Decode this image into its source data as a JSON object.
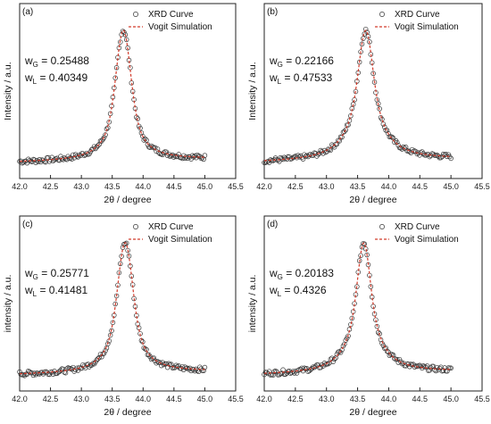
{
  "chart_data": [
    {
      "type": "scatter",
      "panel_label": "(a)",
      "xlabel": "2θ / degree",
      "ylabel": "Intensity / a.u.",
      "xlim": [
        42.0,
        45.5
      ],
      "xticks": [
        "42.0",
        "42.5",
        "43.0",
        "43.5",
        "44.0",
        "44.5",
        "45.0",
        "45.5"
      ],
      "grid": false,
      "legend": {
        "position": "top-right",
        "entries": [
          "XRD Curve",
          "Vogit Simulation"
        ]
      },
      "params": {
        "wG_label": "w",
        "wG_sub": "G",
        "wG_value": " = 0.25488",
        "wL_label": "w",
        "wL_sub": "L",
        "wL_value": " = 0.40349"
      },
      "series": [
        {
          "name": "XRD Curve",
          "peak_x": 43.68,
          "wG": 0.25488,
          "wL": 0.40349
        },
        {
          "name": "Vogit Simulation",
          "peak_x": 43.68,
          "wG": 0.25488,
          "wL": 0.40349
        }
      ],
      "x_range": [
        42.0,
        45.0
      ]
    },
    {
      "type": "scatter",
      "panel_label": "(b)",
      "xlabel": "2θ / degree",
      "ylabel": "Intensity / a.u.",
      "xlim": [
        42.0,
        45.5
      ],
      "xticks": [
        "42.0",
        "42.5",
        "43.0",
        "43.5",
        "44.0",
        "44.5",
        "45.0",
        "45.5"
      ],
      "grid": false,
      "legend": {
        "position": "top-right",
        "entries": [
          "XRD Curve",
          "Vogit Simulation"
        ]
      },
      "params": {
        "wG_label": "w",
        "wG_sub": "G",
        "wG_value": " = 0.22166",
        "wL_label": "w",
        "wL_sub": "L",
        "wL_value": " = 0.47533"
      },
      "series": [
        {
          "name": "XRD Curve",
          "peak_x": 43.63,
          "wG": 0.22166,
          "wL": 0.47533
        },
        {
          "name": "Vogit Simulation",
          "peak_x": 43.63,
          "wG": 0.22166,
          "wL": 0.47533
        }
      ],
      "x_range": [
        42.0,
        45.0
      ]
    },
    {
      "type": "scatter",
      "panel_label": "(c)",
      "xlabel": "2θ / degree",
      "ylabel": "intensity / a.u.",
      "xlim": [
        42.0,
        45.5
      ],
      "xticks": [
        "42.0",
        "42.5",
        "43.0",
        "43.5",
        "44.0",
        "44.5",
        "45.0",
        "45.5"
      ],
      "grid": false,
      "legend": {
        "position": "top-right",
        "entries": [
          "XRD Curve",
          "Vogit Simulation"
        ]
      },
      "params": {
        "wG_label": "w",
        "wG_sub": "G",
        "wG_value": " = 0.25771",
        "wL_label": "w",
        "wL_sub": "L",
        "wL_value": " = 0.41481"
      },
      "series": [
        {
          "name": "XRD Curve",
          "peak_x": 43.71,
          "wG": 0.25771,
          "wL": 0.41481
        },
        {
          "name": "Vogit Simulation",
          "peak_x": 43.71,
          "wG": 0.25771,
          "wL": 0.41481
        }
      ],
      "x_range": [
        42.0,
        45.0
      ]
    },
    {
      "type": "scatter",
      "panel_label": "(d)",
      "xlabel": "2θ / degree",
      "ylabel": "intensity / a.u.",
      "xlim": [
        42.0,
        45.5
      ],
      "xticks": [
        "42.0",
        "42.5",
        "43.0",
        "43.5",
        "44.0",
        "44.5",
        "45.0",
        "45.5"
      ],
      "grid": false,
      "legend": {
        "position": "top-right",
        "entries": [
          "XRD Curve",
          "Vogit Simulation"
        ]
      },
      "params": {
        "wG_label": "w",
        "wG_sub": "G",
        "wG_value": " = 0.20183",
        "wL_label": "w",
        "wL_sub": "L",
        "wL_value": " = 0.4326"
      },
      "series": [
        {
          "name": "XRD Curve",
          "peak_x": 43.6,
          "wG": 0.20183,
          "wL": 0.4326
        },
        {
          "name": "Vogit Simulation",
          "peak_x": 43.6,
          "wG": 0.20183,
          "wL": 0.4326
        }
      ],
      "x_range": [
        42.0,
        45.0
      ]
    }
  ],
  "colors": {
    "points": "#333333",
    "fit": "#d23b2b",
    "frame": "#222222"
  }
}
